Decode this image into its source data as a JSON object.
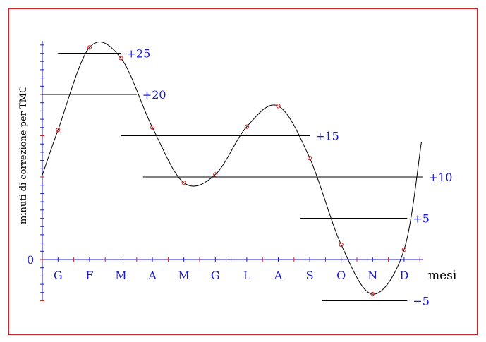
{
  "chart_data": {
    "type": "line",
    "title": "",
    "xlabel": "mesi",
    "ylabel": "minuti  di correzione per TMC",
    "ylim": [
      -5,
      26
    ],
    "categories": [
      "G",
      "F",
      "M",
      "A",
      "M",
      "G",
      "L",
      "A",
      "S",
      "O",
      "N",
      "D"
    ],
    "origin_label": "0",
    "series": [
      {
        "values": [
          15.7,
          25.7,
          24.4,
          16.0,
          9.3,
          10.3,
          16.1,
          18.6,
          12.3,
          1.8,
          -4.2,
          1.2
        ]
      }
    ],
    "reference_lines": [
      {
        "label": "+25",
        "value": 25,
        "x_from": 0.5,
        "x_to": 2.5
      },
      {
        "label": "+20",
        "value": 20,
        "x_from": 0.0,
        "x_to": 3.0
      },
      {
        "label": "+15",
        "value": 15,
        "x_from": 2.5,
        "x_to": 8.5
      },
      {
        "label": "+10",
        "value": 10,
        "x_from": 3.2,
        "x_to": 12.1
      },
      {
        "label": "+5",
        "value": 5,
        "x_from": 8.2,
        "x_to": 11.6
      },
      {
        "label": "−5",
        "value": -5,
        "x_from": 8.9,
        "x_to": 11.6
      }
    ],
    "colors": {
      "axis": "#1a1ad6",
      "tick_minor": "#1a1ad6",
      "tick_major": "#d42020",
      "marker": "#d42020",
      "curve": "#000000",
      "frame": "#d42020",
      "label": "#1a1ad6"
    },
    "grid": false,
    "legend": "none"
  }
}
